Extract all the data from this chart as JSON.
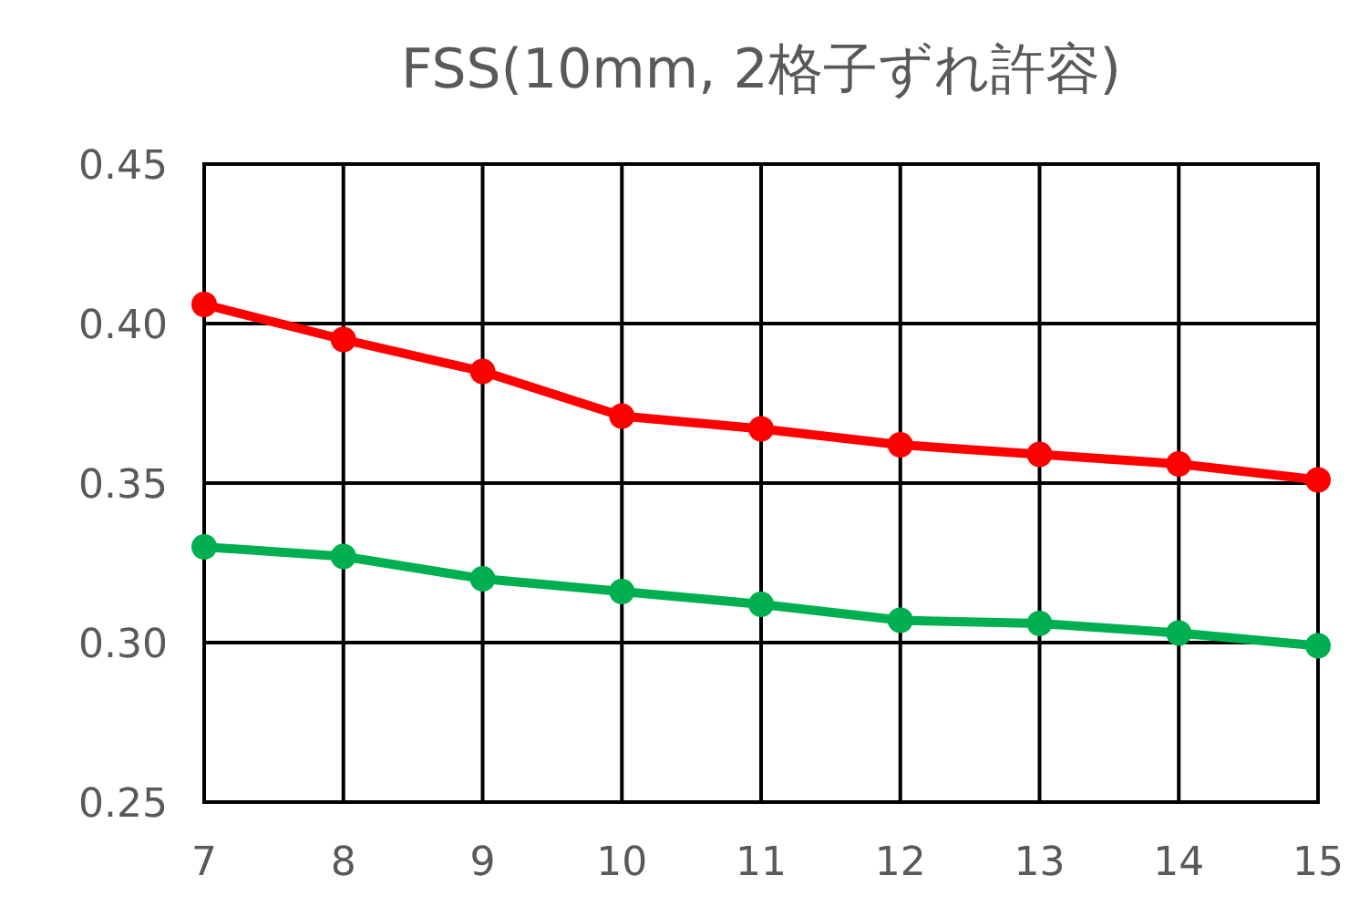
{
  "chart_data": {
    "type": "line",
    "title": "FSS(10mm, 2格子ずれ許容)",
    "x": [
      7,
      8,
      9,
      10,
      11,
      12,
      13,
      14,
      15
    ],
    "xlim": [
      7,
      15
    ],
    "xticks": [
      7,
      8,
      9,
      10,
      11,
      12,
      13,
      14,
      15
    ],
    "ylim": [
      0.25,
      0.45
    ],
    "yticks": [
      {
        "value": 0.25,
        "label": "0.25"
      },
      {
        "value": 0.3,
        "label": "0.30"
      },
      {
        "value": 0.35,
        "label": "0.35"
      },
      {
        "value": 0.4,
        "label": "0.40"
      },
      {
        "value": 0.45,
        "label": "0.45"
      }
    ],
    "grid": true,
    "marker": "circle",
    "line_style": "solid",
    "series": [
      {
        "color": "#ff0000",
        "values": [
          0.406,
          0.395,
          0.385,
          0.371,
          0.367,
          0.362,
          0.359,
          0.356,
          0.351
        ]
      },
      {
        "color": "#00b050",
        "values": [
          0.33,
          0.327,
          0.32,
          0.316,
          0.312,
          0.307,
          0.306,
          0.303,
          0.299
        ]
      }
    ]
  }
}
